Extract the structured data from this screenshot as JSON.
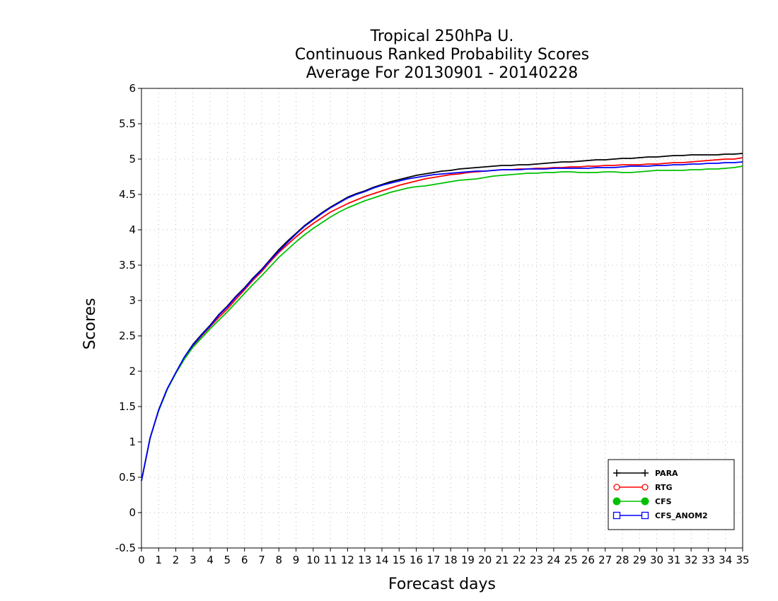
{
  "chart_data": {
    "type": "line",
    "title_lines": [
      "Tropical 250hPa U.",
      "Continuous Ranked Probability Scores",
      "Average For 20130901 - 20140228"
    ],
    "xlabel": "Forecast days",
    "ylabel": "Scores",
    "xlim": [
      0,
      35
    ],
    "ylim": [
      -0.5,
      6
    ],
    "x_ticks": [
      0,
      1,
      2,
      3,
      4,
      5,
      6,
      7,
      8,
      9,
      10,
      11,
      12,
      13,
      14,
      15,
      16,
      17,
      18,
      19,
      20,
      21,
      22,
      23,
      24,
      25,
      26,
      27,
      28,
      29,
      30,
      31,
      32,
      33,
      34,
      35
    ],
    "y_ticks": [
      -0.5,
      0,
      0.5,
      1,
      1.5,
      2,
      2.5,
      3,
      3.5,
      4,
      4.5,
      5,
      5.5,
      6
    ],
    "y_tick_labels": [
      "-0.5",
      "0",
      "0.5",
      "1",
      "1.5",
      "2",
      "2.5",
      "3",
      "3.5",
      "4",
      "4.5",
      "5",
      "5.5",
      "6"
    ],
    "grid": true,
    "legend_position": "bottom-right",
    "x": [
      0,
      0.5,
      1,
      1.5,
      2,
      2.5,
      3,
      3.5,
      4,
      4.5,
      5,
      5.5,
      6,
      6.5,
      7,
      7.5,
      8,
      8.5,
      9,
      9.5,
      10,
      10.5,
      11,
      11.5,
      12,
      12.5,
      13,
      13.5,
      14,
      14.5,
      15,
      15.5,
      16,
      16.5,
      17,
      17.5,
      18,
      18.5,
      19,
      19.5,
      20,
      20.5,
      21,
      21.5,
      22,
      22.5,
      23,
      23.5,
      24,
      24.5,
      25,
      25.5,
      26,
      26.5,
      27,
      27.5,
      28,
      28.5,
      29,
      29.5,
      30,
      30.5,
      31,
      31.5,
      32,
      32.5,
      33,
      33.5,
      34,
      34.5,
      35
    ],
    "series": [
      {
        "name": "PARA",
        "color": "#000000",
        "marker": "plus",
        "values": [
          0.45,
          1.05,
          1.45,
          1.75,
          1.98,
          2.2,
          2.38,
          2.52,
          2.65,
          2.8,
          2.92,
          3.06,
          3.18,
          3.32,
          3.44,
          3.58,
          3.72,
          3.84,
          3.95,
          4.06,
          4.15,
          4.24,
          4.32,
          4.39,
          4.46,
          4.51,
          4.55,
          4.6,
          4.64,
          4.68,
          4.71,
          4.74,
          4.77,
          4.79,
          4.81,
          4.83,
          4.84,
          4.86,
          4.87,
          4.88,
          4.89,
          4.9,
          4.91,
          4.91,
          4.92,
          4.92,
          4.93,
          4.94,
          4.95,
          4.96,
          4.96,
          4.97,
          4.98,
          4.99,
          4.99,
          5.0,
          5.01,
          5.01,
          5.02,
          5.03,
          5.03,
          5.04,
          5.05,
          5.05,
          5.06,
          5.06,
          5.06,
          5.06,
          5.07,
          5.07,
          5.08
        ]
      },
      {
        "name": "RTG",
        "color": "#ff0000",
        "marker": "circle",
        "values": [
          0.45,
          1.05,
          1.45,
          1.75,
          1.98,
          2.19,
          2.36,
          2.5,
          2.63,
          2.76,
          2.88,
          3.02,
          3.15,
          3.29,
          3.41,
          3.55,
          3.68,
          3.79,
          3.9,
          4.0,
          4.09,
          4.17,
          4.25,
          4.31,
          4.37,
          4.42,
          4.47,
          4.51,
          4.55,
          4.59,
          4.63,
          4.66,
          4.69,
          4.72,
          4.74,
          4.76,
          4.78,
          4.79,
          4.81,
          4.82,
          4.83,
          4.84,
          4.85,
          4.85,
          4.86,
          4.86,
          4.87,
          4.87,
          4.88,
          4.88,
          4.89,
          4.89,
          4.9,
          4.9,
          4.91,
          4.91,
          4.92,
          4.92,
          4.92,
          4.93,
          4.93,
          4.94,
          4.95,
          4.95,
          4.96,
          4.97,
          4.98,
          4.99,
          5.0,
          5.0,
          5.02
        ]
      },
      {
        "name": "CFS",
        "color": "#00c000",
        "marker": "filled-circle",
        "values": [
          0.45,
          1.05,
          1.44,
          1.74,
          1.97,
          2.17,
          2.34,
          2.47,
          2.6,
          2.72,
          2.84,
          2.97,
          3.1,
          3.23,
          3.35,
          3.48,
          3.61,
          3.72,
          3.83,
          3.93,
          4.02,
          4.1,
          4.18,
          4.25,
          4.31,
          4.36,
          4.41,
          4.45,
          4.49,
          4.53,
          4.56,
          4.59,
          4.61,
          4.62,
          4.64,
          4.66,
          4.68,
          4.7,
          4.71,
          4.72,
          4.74,
          4.76,
          4.77,
          4.78,
          4.79,
          4.8,
          4.8,
          4.81,
          4.81,
          4.82,
          4.82,
          4.81,
          4.81,
          4.81,
          4.82,
          4.82,
          4.81,
          4.81,
          4.82,
          4.83,
          4.84,
          4.84,
          4.84,
          4.84,
          4.85,
          4.85,
          4.86,
          4.86,
          4.87,
          4.88,
          4.9
        ]
      },
      {
        "name": "CFS_ANOM2",
        "color": "#0000ff",
        "marker": "square",
        "values": [
          0.45,
          1.05,
          1.45,
          1.75,
          1.98,
          2.2,
          2.37,
          2.51,
          2.64,
          2.79,
          2.91,
          3.05,
          3.17,
          3.31,
          3.43,
          3.57,
          3.7,
          3.82,
          3.94,
          4.05,
          4.14,
          4.23,
          4.31,
          4.38,
          4.45,
          4.5,
          4.54,
          4.59,
          4.63,
          4.66,
          4.69,
          4.72,
          4.74,
          4.76,
          4.78,
          4.79,
          4.8,
          4.81,
          4.82,
          4.83,
          4.83,
          4.84,
          4.85,
          4.85,
          4.85,
          4.86,
          4.86,
          4.86,
          4.87,
          4.87,
          4.87,
          4.87,
          4.87,
          4.88,
          4.88,
          4.88,
          4.89,
          4.9,
          4.9,
          4.9,
          4.91,
          4.91,
          4.92,
          4.92,
          4.93,
          4.93,
          4.94,
          4.94,
          4.95,
          4.95,
          4.96
        ]
      }
    ]
  }
}
